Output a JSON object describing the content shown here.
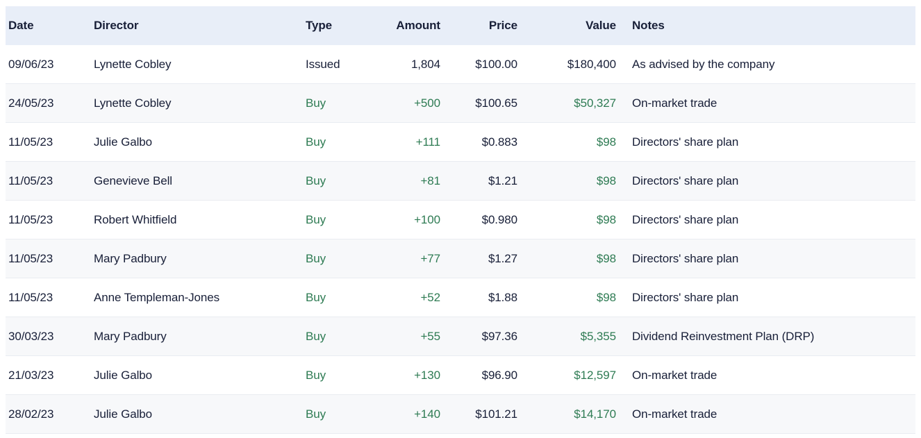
{
  "colors": {
    "text": "#181f38",
    "accent_green": "#2e7b53",
    "header_bg": "#e8eef8",
    "stripe_bg": "#f7f8fa",
    "row_border": "#e9ecf1",
    "page_bg": "#ffffff"
  },
  "table": {
    "columns": [
      {
        "key": "date",
        "label": "Date",
        "align": "left"
      },
      {
        "key": "director",
        "label": "Director",
        "align": "left"
      },
      {
        "key": "type",
        "label": "Type",
        "align": "left"
      },
      {
        "key": "amount",
        "label": "Amount",
        "align": "right"
      },
      {
        "key": "price",
        "label": "Price",
        "align": "right"
      },
      {
        "key": "value",
        "label": "Value",
        "align": "right"
      },
      {
        "key": "notes",
        "label": "Notes",
        "align": "left"
      }
    ],
    "accent_columns": [
      "type",
      "amount",
      "value"
    ],
    "rows": [
      {
        "date": "09/06/23",
        "director": "Lynette Cobley",
        "type": "Issued",
        "amount": "1,804",
        "price": "$100.00",
        "value": "$180,400",
        "notes": "As advised by the company",
        "accent": false
      },
      {
        "date": "24/05/23",
        "director": "Lynette Cobley",
        "type": "Buy",
        "amount": "+500",
        "price": "$100.65",
        "value": "$50,327",
        "notes": "On-market trade",
        "accent": true
      },
      {
        "date": "11/05/23",
        "director": "Julie Galbo",
        "type": "Buy",
        "amount": "+111",
        "price": "$0.883",
        "value": "$98",
        "notes": "Directors' share plan",
        "accent": true
      },
      {
        "date": "11/05/23",
        "director": "Genevieve Bell",
        "type": "Buy",
        "amount": "+81",
        "price": "$1.21",
        "value": "$98",
        "notes": "Directors' share plan",
        "accent": true
      },
      {
        "date": "11/05/23",
        "director": "Robert Whitfield",
        "type": "Buy",
        "amount": "+100",
        "price": "$0.980",
        "value": "$98",
        "notes": "Directors' share plan",
        "accent": true
      },
      {
        "date": "11/05/23",
        "director": "Mary Padbury",
        "type": "Buy",
        "amount": "+77",
        "price": "$1.27",
        "value": "$98",
        "notes": "Directors' share plan",
        "accent": true
      },
      {
        "date": "11/05/23",
        "director": "Anne Templeman-Jones",
        "type": "Buy",
        "amount": "+52",
        "price": "$1.88",
        "value": "$98",
        "notes": "Directors' share plan",
        "accent": true
      },
      {
        "date": "30/03/23",
        "director": "Mary Padbury",
        "type": "Buy",
        "amount": "+55",
        "price": "$97.36",
        "value": "$5,355",
        "notes": "Dividend Reinvestment Plan (DRP)",
        "accent": true
      },
      {
        "date": "21/03/23",
        "director": "Julie Galbo",
        "type": "Buy",
        "amount": "+130",
        "price": "$96.90",
        "value": "$12,597",
        "notes": "On-market trade",
        "accent": true
      },
      {
        "date": "28/02/23",
        "director": "Julie Galbo",
        "type": "Buy",
        "amount": "+140",
        "price": "$101.21",
        "value": "$14,170",
        "notes": "On-market trade",
        "accent": true
      }
    ]
  }
}
